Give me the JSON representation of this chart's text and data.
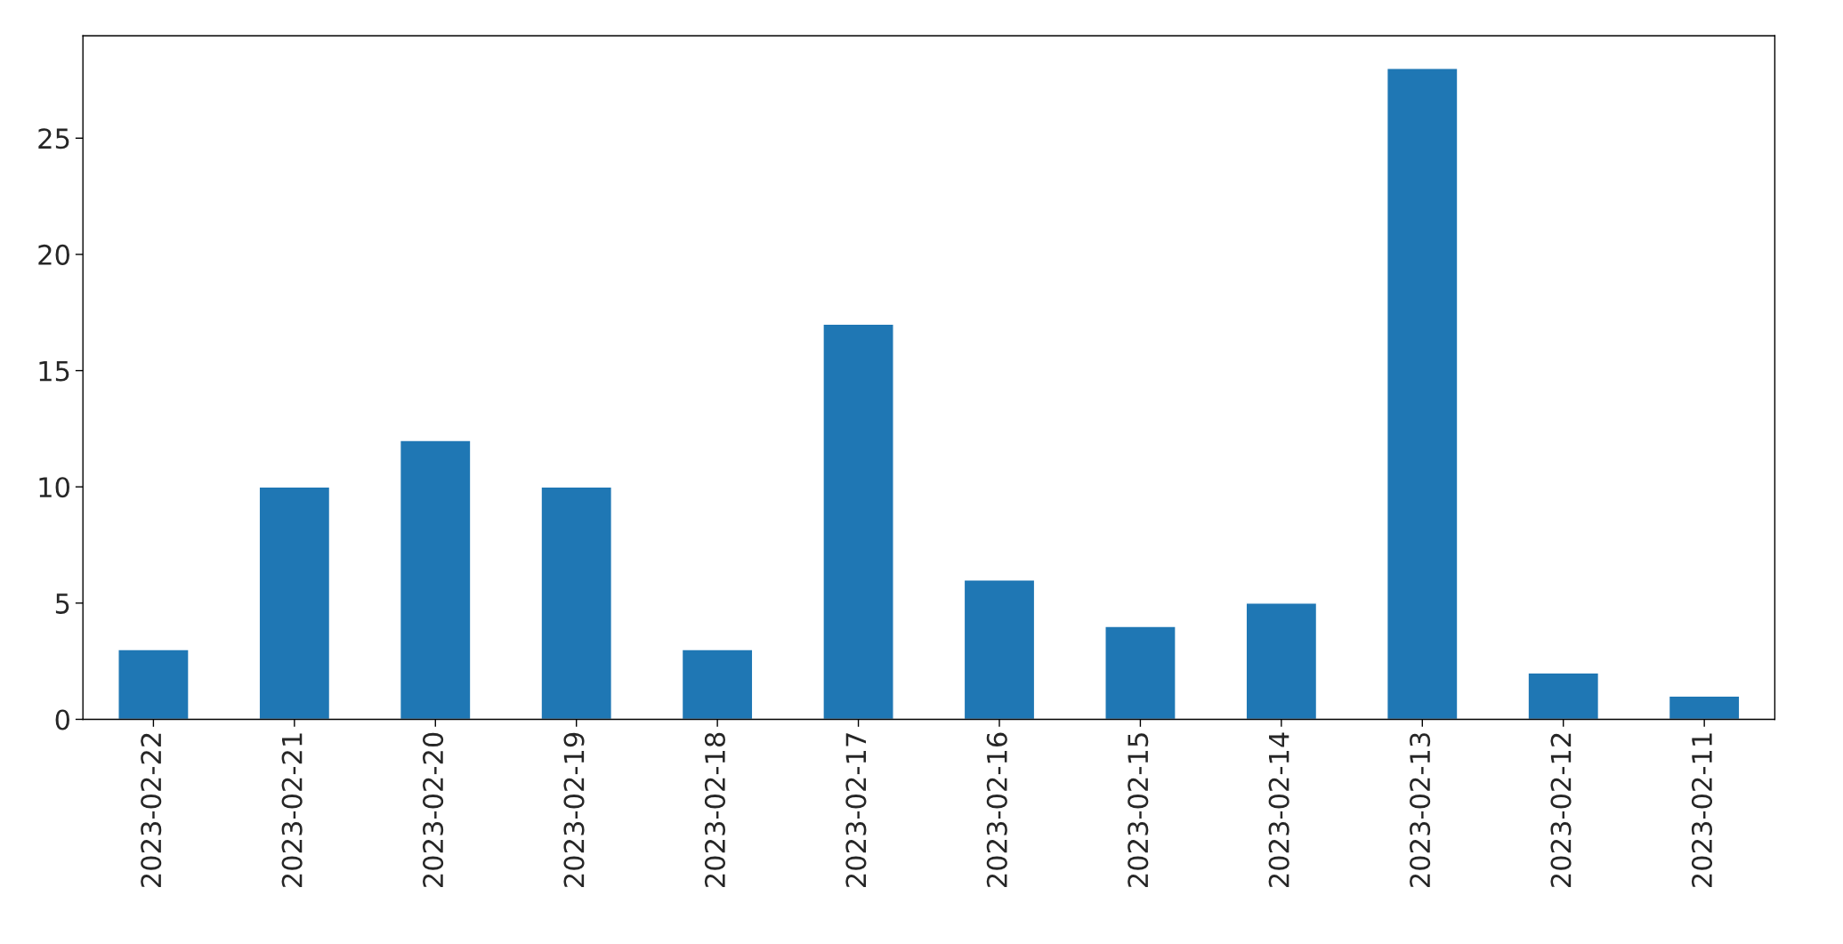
{
  "chart_data": {
    "type": "bar",
    "categories": [
      "2023-02-22",
      "2023-02-21",
      "2023-02-20",
      "2023-02-19",
      "2023-02-18",
      "2023-02-17",
      "2023-02-16",
      "2023-02-15",
      "2023-02-14",
      "2023-02-13",
      "2023-02-12",
      "2023-02-11"
    ],
    "values": [
      3,
      10,
      12,
      10,
      3,
      17,
      6,
      4,
      5,
      28,
      2,
      1
    ],
    "color": "#1f77b4",
    "ylim": [
      0,
      29.4
    ],
    "yticks": [
      0,
      5,
      10,
      15,
      20,
      25
    ],
    "grid": false,
    "legend": false
  }
}
